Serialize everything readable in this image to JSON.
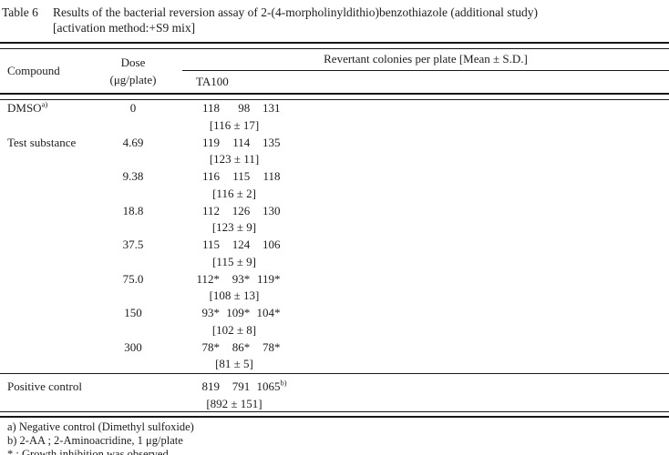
{
  "title": {
    "label": "Table 6",
    "line1": "Results of the bacterial reversion assay of 2-(4-morpholinyldithio)benzothiazole (additional study)",
    "line2": "[activation method:+S9 mix]"
  },
  "table": {
    "headers": {
      "compound": "Compound",
      "dose_line1": "Dose",
      "dose_line2": "(μg/plate)",
      "revertant": "Revertant colonies per plate [Mean ± S.D.]",
      "strain": "TA100"
    },
    "rows": [
      {
        "compound": "DMSO",
        "compound_sup": "a)",
        "dose": "0",
        "v1": "118",
        "v2": "98",
        "v3": "131",
        "mean": "[116 ± 17]"
      },
      {
        "compound": "Test substance",
        "dose": "4.69",
        "v1": "119",
        "v2": "114",
        "v3": "135",
        "mean": "[123 ± 11]"
      },
      {
        "compound": "",
        "dose": "9.38",
        "v1": "116",
        "v2": "115",
        "v3": "118",
        "mean": "[116 ± 2]"
      },
      {
        "compound": "",
        "dose": "18.8",
        "v1": "112",
        "v2": "126",
        "v3": "130",
        "mean": "[123 ± 9]"
      },
      {
        "compound": "",
        "dose": "37.5",
        "v1": "115",
        "v2": "124",
        "v3": "106",
        "mean": "[115 ± 9]"
      },
      {
        "compound": "",
        "dose": "75.0",
        "v1": "112*",
        "v2": "93*",
        "v3": "119*",
        "mean": "[108 ± 13]"
      },
      {
        "compound": "",
        "dose": "150",
        "v1": "93*",
        "v2": "109*",
        "v3": "104*",
        "mean": "[102 ± 8]"
      },
      {
        "compound": "",
        "dose": "300",
        "v1": "78*",
        "v2": "86*",
        "v3": "78*",
        "mean": "[81 ± 5]"
      }
    ],
    "positive_control": {
      "compound": "Positive control",
      "dose": "",
      "v1": "819",
      "v2": "791",
      "v3": "1065",
      "v3_sup": "b)",
      "mean": "[892 ± 151]"
    }
  },
  "footnotes": [
    "a) Negative control (Dimethyl sulfoxide)",
    "b) 2-AA ; 2-Aminoacridine, 1 μg/plate",
    "* : Growth inhibition was observed"
  ]
}
